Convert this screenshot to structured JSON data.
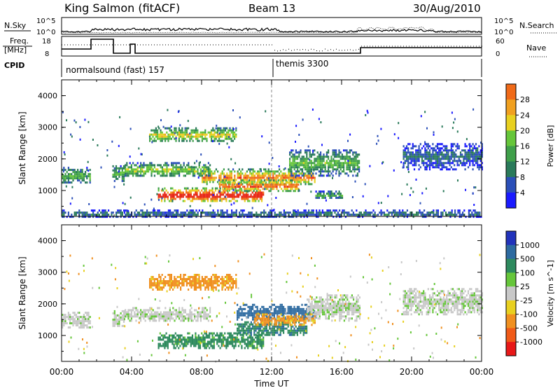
{
  "header": {
    "station": "King Salmon (fitACF)",
    "beam": "Beam 13",
    "date": "30/Aug/2010"
  },
  "sky_panel": {
    "left_label": "N.Sky",
    "right_label": "N.Search",
    "ytick_top": "10^5",
    "ytick_bottom": "10^0",
    "rtick_top": "10^5",
    "rtick_bottom": "10^0"
  },
  "freq_panel": {
    "left_label_1": "Freq.",
    "left_label_2": "[MHz]",
    "right_label": "Nave",
    "ytick_top": "18",
    "ytick_bottom": "8",
    "rtick_top": "60",
    "rtick_bottom": "0"
  },
  "cpid_panel": {
    "label": "CPID",
    "mode_1": "normalsound (fast) 157",
    "mode_2": "themis 3300"
  },
  "colors": {
    "power_scale": [
      "#1a1aff",
      "#2b4fb8",
      "#2a7a5a",
      "#3f9f4a",
      "#66c63a",
      "#e8d020",
      "#f0a020",
      "#f06a18",
      "#e82818"
    ],
    "velocity_scale": [
      "#2233bb",
      "#2d6aa0",
      "#2e8a5e",
      "#66c63a",
      "#c8c8c8",
      "#e8d020",
      "#f09020",
      "#f05a18",
      "#e81818"
    ]
  },
  "chart_data": [
    {
      "type": "heatmap",
      "name_key": "power",
      "ylabel": "Slant Range [km]",
      "xlabel": "Time UT",
      "x_ticks": [
        "00:00",
        "04:00",
        "08:00",
        "12:00",
        "16:00",
        "20:00",
        "00:00"
      ],
      "y_ticks": [
        "1000",
        "2000",
        "3000",
        "4000"
      ],
      "xlim_hours": [
        0,
        24
      ],
      "ylim_km": [
        180,
        4500
      ],
      "colorbar_label": "Power [dB]",
      "colorbar_ticks": [
        "4",
        "8",
        "12",
        "16",
        "20",
        "24",
        "28"
      ],
      "colorbar_range": [
        0,
        30
      ],
      "regions": [
        {
          "t0": 0.0,
          "t1": 1.6,
          "r0": 1250,
          "r1": 1750,
          "v": 10
        },
        {
          "t0": 2.9,
          "t1": 3.6,
          "r0": 1300,
          "r1": 1800,
          "v": 10
        },
        {
          "t0": 3.6,
          "t1": 8.5,
          "r0": 1450,
          "r1": 1900,
          "v": 12
        },
        {
          "t0": 5.0,
          "t1": 10.0,
          "r0": 2550,
          "r1": 3000,
          "v": 14
        },
        {
          "t0": 5.5,
          "t1": 11.5,
          "r0": 650,
          "r1": 1100,
          "v": 24
        },
        {
          "t0": 8.0,
          "t1": 14.5,
          "r0": 1200,
          "r1": 1700,
          "v": 18
        },
        {
          "t0": 13.0,
          "t1": 17.0,
          "r0": 1500,
          "r1": 2300,
          "v": 10
        },
        {
          "t0": 14.5,
          "t1": 16.0,
          "r0": 750,
          "r1": 1000,
          "v": 9
        },
        {
          "t0": 9.0,
          "t1": 13.5,
          "r0": 1000,
          "r1": 1350,
          "v": 20
        },
        {
          "t0": 19.5,
          "t1": 24.0,
          "r0": 1700,
          "r1": 2500,
          "v": 5
        },
        {
          "t0": 0.0,
          "t1": 24.0,
          "r0": 180,
          "r1": 400,
          "v": 6
        }
      ]
    },
    {
      "type": "heatmap",
      "name_key": "velocity",
      "ylabel": "Slant Range [km]",
      "xlabel": "Time UT",
      "x_ticks": [
        "00:00",
        "04:00",
        "08:00",
        "12:00",
        "16:00",
        "20:00",
        "00:00"
      ],
      "y_ticks": [
        "1000",
        "2000",
        "3000",
        "4000"
      ],
      "xlim_hours": [
        0,
        24
      ],
      "ylim_km": [
        180,
        4500
      ],
      "colorbar_label": "Velocity [m s^-1]",
      "colorbar_ticks": [
        "1000",
        "500",
        "100",
        "25",
        "-25",
        "-100",
        "-500",
        "-1000"
      ],
      "regions": [
        {
          "t0": 0.0,
          "t1": 1.6,
          "r0": 1250,
          "r1": 1750,
          "v": 0
        },
        {
          "t0": 2.9,
          "t1": 3.6,
          "r0": 1300,
          "r1": 1800,
          "v": 0
        },
        {
          "t0": 3.6,
          "t1": 8.5,
          "r0": 1450,
          "r1": 1900,
          "v": 0
        },
        {
          "t0": 5.0,
          "t1": 10.0,
          "r0": 2450,
          "r1": 2950,
          "v": -150
        },
        {
          "t0": 5.5,
          "t1": 11.5,
          "r0": 600,
          "r1": 1100,
          "v": 50
        },
        {
          "t0": 10.0,
          "t1": 14.5,
          "r0": 1500,
          "r1": 2000,
          "v": 300
        },
        {
          "t0": 10.0,
          "t1": 14.0,
          "r0": 1000,
          "r1": 1450,
          "v": 80
        },
        {
          "t0": 11.0,
          "t1": 14.5,
          "r0": 1350,
          "r1": 1700,
          "v": -150
        },
        {
          "t0": 14.0,
          "t1": 17.0,
          "r0": 1500,
          "r1": 2300,
          "v": 0
        },
        {
          "t0": 19.5,
          "t1": 24.0,
          "r0": 1700,
          "r1": 2500,
          "v": 0
        }
      ]
    }
  ]
}
